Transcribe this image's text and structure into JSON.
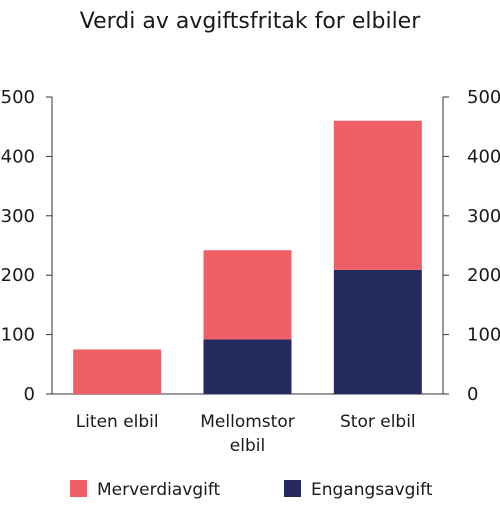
{
  "chart_data": {
    "type": "bar",
    "stacked": true,
    "title": "Verdi av avgiftsfritak for elbiler",
    "categories": [
      [
        "Liten elbil"
      ],
      [
        "Mellomstor",
        "elbil"
      ],
      [
        "Stor elbil"
      ]
    ],
    "series": [
      {
        "name": "Engangsavgift",
        "color": "#252a5e",
        "values": [
          0,
          92,
          209
        ]
      },
      {
        "name": "Merverdiavgift",
        "color": "#f05f66",
        "values": [
          75,
          150,
          251
        ]
      }
    ],
    "ylim": [
      0,
      500
    ],
    "yticks": [
      0,
      100,
      200,
      300,
      400,
      500
    ],
    "y_axis_both_sides": true,
    "grid": false,
    "legend": {
      "placement": "bottom",
      "order": [
        "Merverdiavgift",
        "Engangsavgift"
      ]
    }
  }
}
